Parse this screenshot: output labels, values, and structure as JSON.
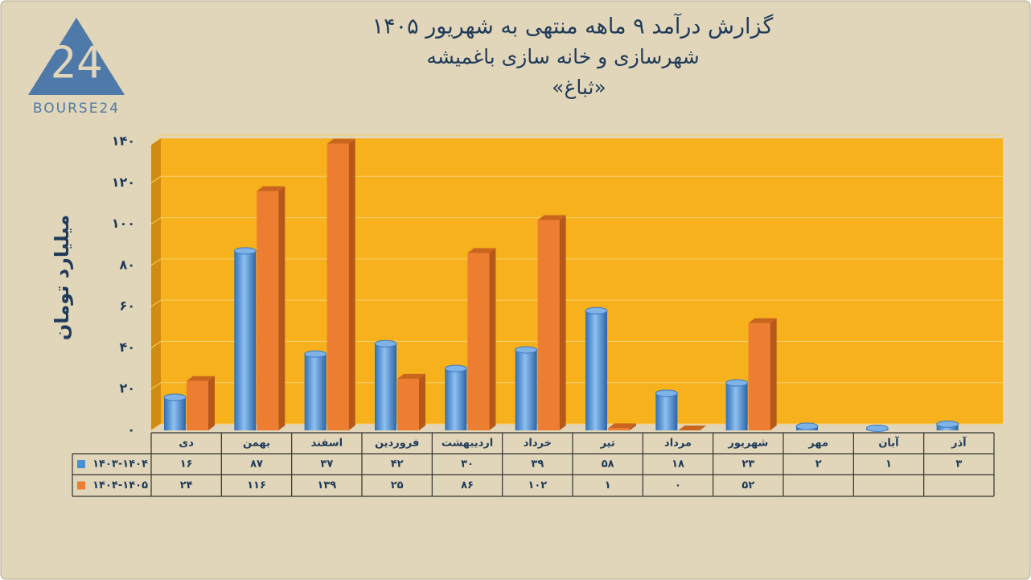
{
  "logo": {
    "number": "24",
    "text": "BOURSE24"
  },
  "chart_data": {
    "type": "bar",
    "title": "گزارش  درآمد ۹ ماهه منتهی به شهریور ۱۴۰۵",
    "subtitle": "شهرسازی و خانه سازی باغمیشه",
    "ticker": "«ثباغ»",
    "y_label": "میلیارد تومان",
    "categories": [
      "دی",
      "بهمن",
      "اسفند",
      "فروردین",
      "اردیبهشت",
      "خرداد",
      "تیر",
      "مرداد",
      "شهریور",
      "مهر",
      "آبان",
      "آذر"
    ],
    "series": [
      {
        "name": "۱۴۰۳-۱۴۰۴",
        "color": "#4a8fd6",
        "values": [
          16,
          87,
          37,
          42,
          30,
          39,
          58,
          18,
          23,
          2,
          1,
          3
        ],
        "value_labels": [
          "۱۶",
          "۸۷",
          "۳۷",
          "۴۲",
          "۳۰",
          "۳۹",
          "۵۸",
          "۱۸",
          "۲۳",
          "۲",
          "۱",
          "۳"
        ]
      },
      {
        "name": "۱۴۰۴-۱۴۰۵",
        "color": "#ed7d31",
        "values": [
          24,
          116,
          139,
          25,
          86,
          102,
          1,
          0,
          52,
          null,
          null,
          null
        ],
        "value_labels": [
          "۲۴",
          "۱۱۶",
          "۱۳۹",
          "۲۵",
          "۸۶",
          "۱۰۲",
          "۱",
          "۰",
          "۵۲",
          null,
          null,
          null
        ]
      }
    ],
    "ylim": [
      0,
      140
    ],
    "yticks": [
      {
        "value": 0,
        "label": "۰"
      },
      {
        "value": 20,
        "label": "۲۰"
      },
      {
        "value": 40,
        "label": "۴۰"
      },
      {
        "value": 60,
        "label": "۶۰"
      },
      {
        "value": 80,
        "label": "۸۰"
      },
      {
        "value": 100,
        "label": "۱۰۰"
      },
      {
        "value": 120,
        "label": "۱۲۰"
      },
      {
        "value": 140,
        "label": "۱۴۰"
      }
    ],
    "grid": true,
    "plot_color": "#f6b11c"
  }
}
